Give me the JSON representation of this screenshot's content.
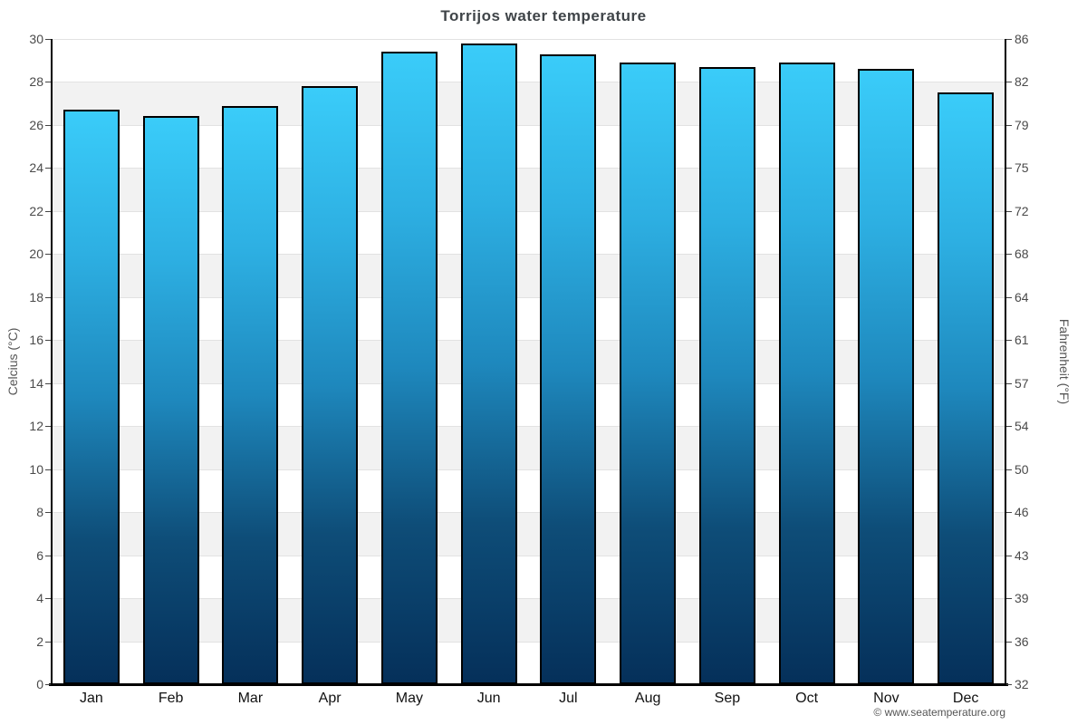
{
  "title": "Torrijos water temperature",
  "copyright": "© www.seatemperature.org",
  "chart_data": {
    "type": "bar",
    "title": "Torrijos water temperature",
    "categories": [
      "Jan",
      "Feb",
      "Mar",
      "Apr",
      "May",
      "Jun",
      "Jul",
      "Aug",
      "Sep",
      "Oct",
      "Nov",
      "Dec"
    ],
    "values": [
      26.7,
      26.4,
      26.9,
      27.8,
      29.4,
      29.8,
      29.3,
      28.9,
      28.7,
      28.9,
      28.6,
      27.5
    ],
    "unit": "°C",
    "xlabel": "",
    "ylabel_left": "Celcius (°C)",
    "ylabel_right": "Fahrenheit (°F)",
    "ylim": [
      0,
      30
    ],
    "yticks_celsius": [
      0,
      2,
      4,
      6,
      8,
      10,
      12,
      14,
      16,
      18,
      20,
      22,
      24,
      26,
      28,
      30
    ],
    "yticks_fahrenheit": [
      32,
      36,
      39,
      43,
      46,
      50,
      54,
      57,
      61,
      64,
      68,
      72,
      75,
      79,
      82,
      86
    ],
    "grid": true,
    "legend": null,
    "band_color_odd": "#f2f2f2",
    "band_color_even": "#ffffff",
    "gridline_color": "#e2e2e2",
    "bar_gradient_top": "#3accf9",
    "bar_gradient_mid": "#1e88bd",
    "bar_gradient_bottom": "#05305a",
    "bar_border_color": "#000000"
  }
}
